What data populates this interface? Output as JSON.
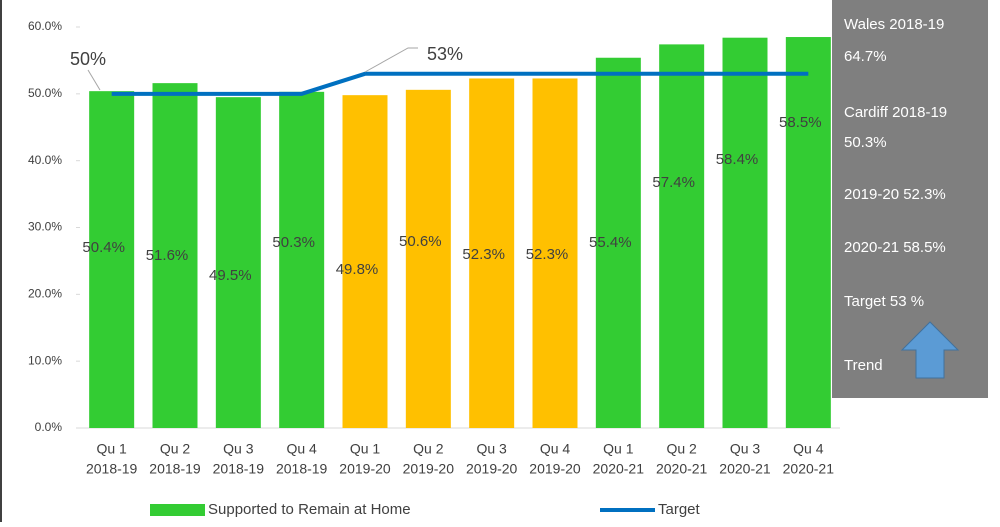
{
  "chart_data": {
    "type": "bar",
    "categories": [
      [
        "Qu 1",
        "2018-19"
      ],
      [
        "Qu 2",
        "2018-19"
      ],
      [
        "Qu 3",
        "2018-19"
      ],
      [
        "Qu 4",
        "2018-19"
      ],
      [
        "Qu 1",
        "2019-20"
      ],
      [
        "Qu 2",
        "2019-20"
      ],
      [
        "Qu 3",
        "2019-20"
      ],
      [
        "Qu 4",
        "2019-20"
      ],
      [
        "Qu 1",
        "2020-21"
      ],
      [
        "Qu 2",
        "2020-21"
      ],
      [
        "Qu 3",
        "2020-21"
      ],
      [
        "Qu 4",
        "2020-21"
      ]
    ],
    "series": [
      {
        "name": "Supported to Remain at Home",
        "type": "bar",
        "color": "#33cc33",
        "colors": [
          "#33cc33",
          "#33cc33",
          "#33cc33",
          "#33cc33",
          "#ffc000",
          "#ffc000",
          "#ffc000",
          "#ffc000",
          "#33cc33",
          "#33cc33",
          "#33cc33",
          "#33cc33"
        ],
        "values": [
          50.4,
          51.6,
          49.5,
          50.3,
          49.8,
          50.6,
          52.3,
          52.3,
          55.4,
          57.4,
          58.4,
          58.5
        ],
        "value_labels": [
          "50.4%",
          "51.6%",
          "49.5%",
          "50.3%",
          "49.8%",
          "50.6%",
          "52.3%",
          "52.3%",
          "55.4%",
          "57.4%",
          "58.4%",
          "58.5%"
        ]
      },
      {
        "name": "Target",
        "type": "line",
        "color": "#0070c0",
        "values": [
          50,
          50,
          50,
          50,
          53,
          53,
          53,
          53,
          53,
          53,
          53,
          53
        ]
      }
    ],
    "annotations": [
      "50%",
      "53%"
    ],
    "ylim": [
      0,
      60
    ],
    "yticks": [
      {
        "value": 0,
        "label": "0.0%"
      },
      {
        "value": 10,
        "label": "10.0%"
      },
      {
        "value": 20,
        "label": "20.0%"
      },
      {
        "value": 30,
        "label": "30.0%"
      },
      {
        "value": 40,
        "label": "40.0%"
      },
      {
        "value": 50,
        "label": "50.0%"
      },
      {
        "value": 60,
        "label": "60.0%"
      }
    ],
    "panel": {
      "color": "#7f7f7f",
      "lines": [
        "Wales 2018-19",
        "64.7%",
        "Cardiff 2018-19",
        "50.3%",
        "2019-20 52.3%",
        "2020-21 58.5%",
        "Target 53 %",
        "Trend"
      ]
    }
  }
}
